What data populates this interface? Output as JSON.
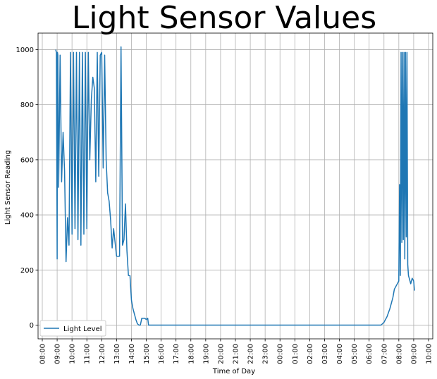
{
  "chart_data": {
    "type": "line",
    "title": "Light Sensor Values",
    "xlabel": "Time of Day",
    "ylabel": "Light Sensor Reading",
    "x_tick_labels": [
      "08:00",
      "09:00",
      "10:00",
      "11:00",
      "12:00",
      "13:00",
      "14:00",
      "15:00",
      "16:00",
      "17:00",
      "18:00",
      "19:00",
      "20:00",
      "21:00",
      "22:00",
      "23:00",
      "00:00",
      "01:00",
      "02:00",
      "03:00",
      "04:00",
      "05:00",
      "06:00",
      "07:00",
      "08:00",
      "09:00",
      "10:00"
    ],
    "y_ticks": [
      0,
      200,
      400,
      600,
      800,
      1000
    ],
    "xlim": [
      0,
      26
    ],
    "ylim": [
      -50,
      1060
    ],
    "grid": true,
    "legend_position": "lower-left",
    "series": [
      {
        "name": "Light Level",
        "color": "#1f77b4",
        "x": [
          0.9,
          0.95,
          1.0,
          1.02,
          1.05,
          1.1,
          1.2,
          1.3,
          1.4,
          1.5,
          1.6,
          1.7,
          1.8,
          1.9,
          2.0,
          2.1,
          2.2,
          2.3,
          2.4,
          2.5,
          2.6,
          2.7,
          2.8,
          2.9,
          3.0,
          3.1,
          3.2,
          3.3,
          3.4,
          3.5,
          3.6,
          3.7,
          3.8,
          3.9,
          4.0,
          4.1,
          4.2,
          4.3,
          4.4,
          4.5,
          4.6,
          4.7,
          4.8,
          4.9,
          5.0,
          5.1,
          5.2,
          5.3,
          5.4,
          5.5,
          5.6,
          5.7,
          5.8,
          5.9,
          6.0,
          6.1,
          6.2,
          6.3,
          6.4,
          6.5,
          6.6,
          6.7,
          6.8,
          6.9,
          7.0,
          7.1,
          7.15,
          7.2,
          7.3,
          7.4,
          7.5,
          7.6,
          7.7,
          7.8,
          7.9,
          8.0,
          8.2,
          8.4,
          8.6,
          8.8,
          9.0,
          9.2,
          9.4,
          9.6,
          9.8,
          10.0,
          10.5,
          10.9,
          11.0,
          12.0,
          13.0,
          14.0,
          15.0,
          16.0,
          17.0,
          18.0,
          19.0,
          20.0,
          21.0,
          22.0,
          22.5,
          22.8,
          23.0,
          23.2,
          23.4,
          23.5,
          23.6,
          23.7,
          23.8,
          23.9,
          24.0,
          24.05,
          24.1,
          24.15,
          24.2,
          24.25,
          24.3,
          24.35,
          24.4,
          24.45,
          24.5,
          24.55,
          24.6,
          24.65,
          24.7,
          24.75,
          24.8,
          24.9,
          25.0,
          25.05
        ],
        "y": [
          1000,
          990,
          240,
          990,
          980,
          500,
          980,
          520,
          700,
          560,
          230,
          390,
          290,
          990,
          330,
          990,
          350,
          990,
          310,
          990,
          290,
          990,
          330,
          990,
          350,
          990,
          600,
          820,
          900,
          860,
          520,
          990,
          540,
          980,
          990,
          570,
          980,
          600,
          480,
          450,
          380,
          280,
          350,
          300,
          250,
          250,
          250,
          1010,
          290,
          310,
          440,
          270,
          180,
          180,
          90,
          60,
          40,
          20,
          5,
          0,
          0,
          25,
          25,
          25,
          20,
          25,
          0,
          0,
          0,
          0,
          0,
          0,
          0,
          0,
          0,
          0,
          0,
          0,
          0,
          0,
          0,
          0,
          0,
          0,
          0,
          0,
          0,
          0,
          0,
          0,
          0,
          0,
          0,
          0,
          0,
          0,
          0,
          0,
          0,
          0,
          0,
          0,
          10,
          30,
          60,
          80,
          100,
          130,
          140,
          150,
          160,
          510,
          180,
          990,
          300,
          990,
          310,
          990,
          240,
          990,
          320,
          990,
          220,
          180,
          170,
          160,
          150,
          170,
          160,
          125
        ]
      }
    ]
  }
}
